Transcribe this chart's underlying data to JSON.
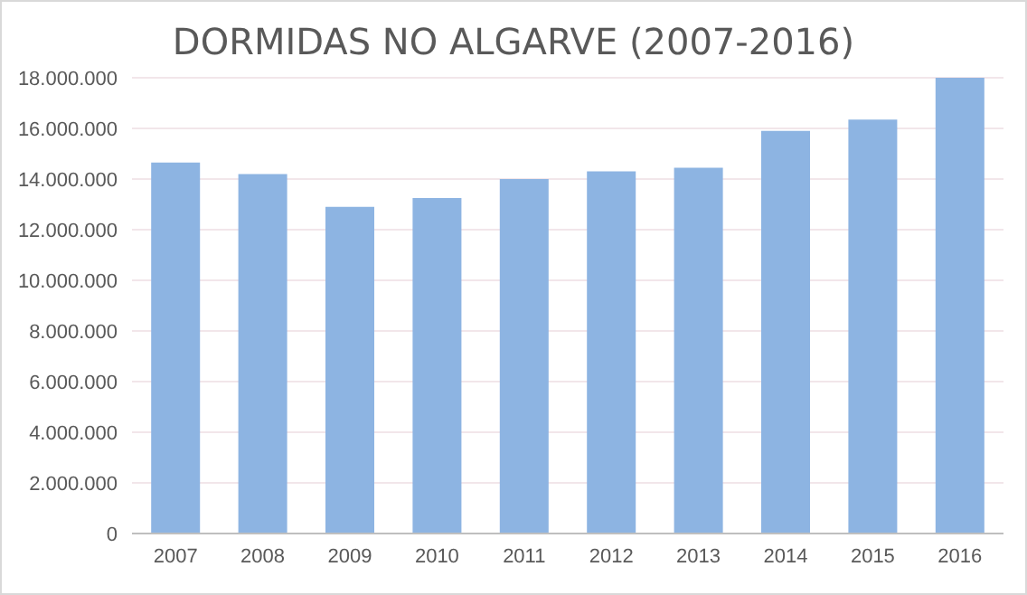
{
  "chart_data": {
    "type": "bar",
    "title": "DORMIDAS NO ALGARVE (2007-2016)",
    "categories": [
      "2007",
      "2008",
      "2009",
      "2010",
      "2011",
      "2012",
      "2013",
      "2014",
      "2015",
      "2016"
    ],
    "values": [
      14650000,
      14200000,
      12900000,
      13250000,
      14000000,
      14300000,
      14450000,
      15900000,
      16350000,
      18000000
    ],
    "color": "#8db4e2",
    "ylim": [
      0,
      18000000
    ],
    "yticks": [
      {
        "value": 0,
        "label": "0"
      },
      {
        "value": 2000000,
        "label": "2.000.000"
      },
      {
        "value": 4000000,
        "label": "4.000.000"
      },
      {
        "value": 6000000,
        "label": "6.000.000"
      },
      {
        "value": 8000000,
        "label": "8.000.000"
      },
      {
        "value": 10000000,
        "label": "10.000.000"
      },
      {
        "value": 12000000,
        "label": "12.000.000"
      },
      {
        "value": 14000000,
        "label": "14.000.000"
      },
      {
        "value": 16000000,
        "label": "16.000.000"
      },
      {
        "value": 18000000,
        "label": "18.000.000"
      }
    ],
    "grid": "y"
  }
}
